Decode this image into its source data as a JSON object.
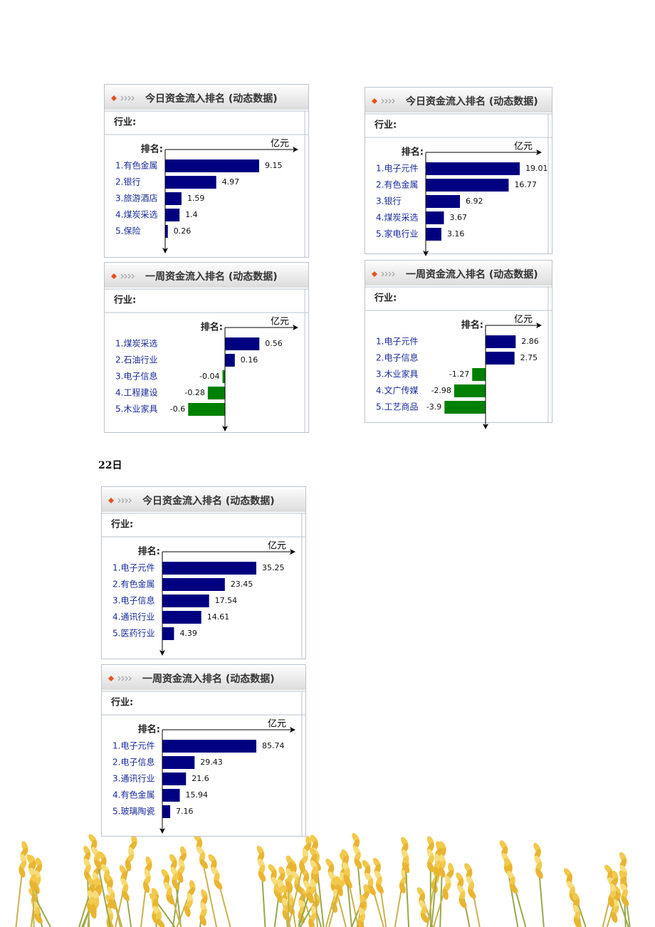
{
  "date_label": "22日",
  "chart_data": [
    {
      "type": "bar",
      "title": "今日资金流入排名 (动态数据)",
      "header": "行业:",
      "rank_label": "排名:",
      "unit": "亿元",
      "categories": [
        "1.有色金属",
        "2.银行",
        "3.旅游酒店",
        "4.煤炭采选",
        "5.保险"
      ],
      "values": [
        9.15,
        4.97,
        1.59,
        1.4,
        0.26
      ],
      "color": "#000080",
      "negative_color": "#008000"
    },
    {
      "type": "bar",
      "title": "今日资金流入排名 (动态数据)",
      "header": "行业:",
      "rank_label": "排名:",
      "unit": "亿元",
      "categories": [
        "1.电子元件",
        "2.有色金属",
        "3.银行",
        "4.煤炭采选",
        "5.家电行业"
      ],
      "values": [
        19.01,
        16.77,
        6.92,
        3.67,
        3.16
      ],
      "color": "#000080",
      "negative_color": "#008000"
    },
    {
      "type": "bar",
      "title": "一周资金流入排名 (动态数据)",
      "header": "行业:",
      "rank_label": "排名:",
      "unit": "亿元",
      "categories": [
        "1.煤炭采选",
        "2.石油行业",
        "3.电子信息",
        "4.工程建设",
        "5.木业家具"
      ],
      "values": [
        0.56,
        0.16,
        -0.04,
        -0.28,
        -0.6
      ],
      "color": "#000080",
      "negative_color": "#008000"
    },
    {
      "type": "bar",
      "title": "一周资金流入排名 (动态数据)",
      "header": "行业:",
      "rank_label": "排名:",
      "unit": "亿元",
      "categories": [
        "1.电子元件",
        "2.电子信息",
        "3.木业家具",
        "4.文广传媒",
        "5.工艺商品"
      ],
      "values": [
        2.86,
        2.75,
        -1.27,
        -2.98,
        -3.9
      ],
      "color": "#000080",
      "negative_color": "#008000"
    },
    {
      "type": "bar",
      "title": "今日资金流入排名 (动态数据)",
      "header": "行业:",
      "rank_label": "排名:",
      "unit": "亿元",
      "categories": [
        "1.电子元件",
        "2.有色金属",
        "3.电子信息",
        "4.通讯行业",
        "5.医药行业"
      ],
      "values": [
        35.25,
        23.45,
        17.54,
        14.61,
        4.39
      ],
      "color": "#000080",
      "negative_color": "#008000"
    },
    {
      "type": "bar",
      "title": "一周资金流入排名 (动态数据)",
      "header": "行业:",
      "rank_label": "排名:",
      "unit": "亿元",
      "categories": [
        "1.电子元件",
        "2.电子信息",
        "3.通讯行业",
        "4.有色金属",
        "5.玻璃陶瓷"
      ],
      "values": [
        85.74,
        29.43,
        21.6,
        15.94,
        7.16
      ],
      "color": "#000080",
      "negative_color": "#008000"
    }
  ]
}
